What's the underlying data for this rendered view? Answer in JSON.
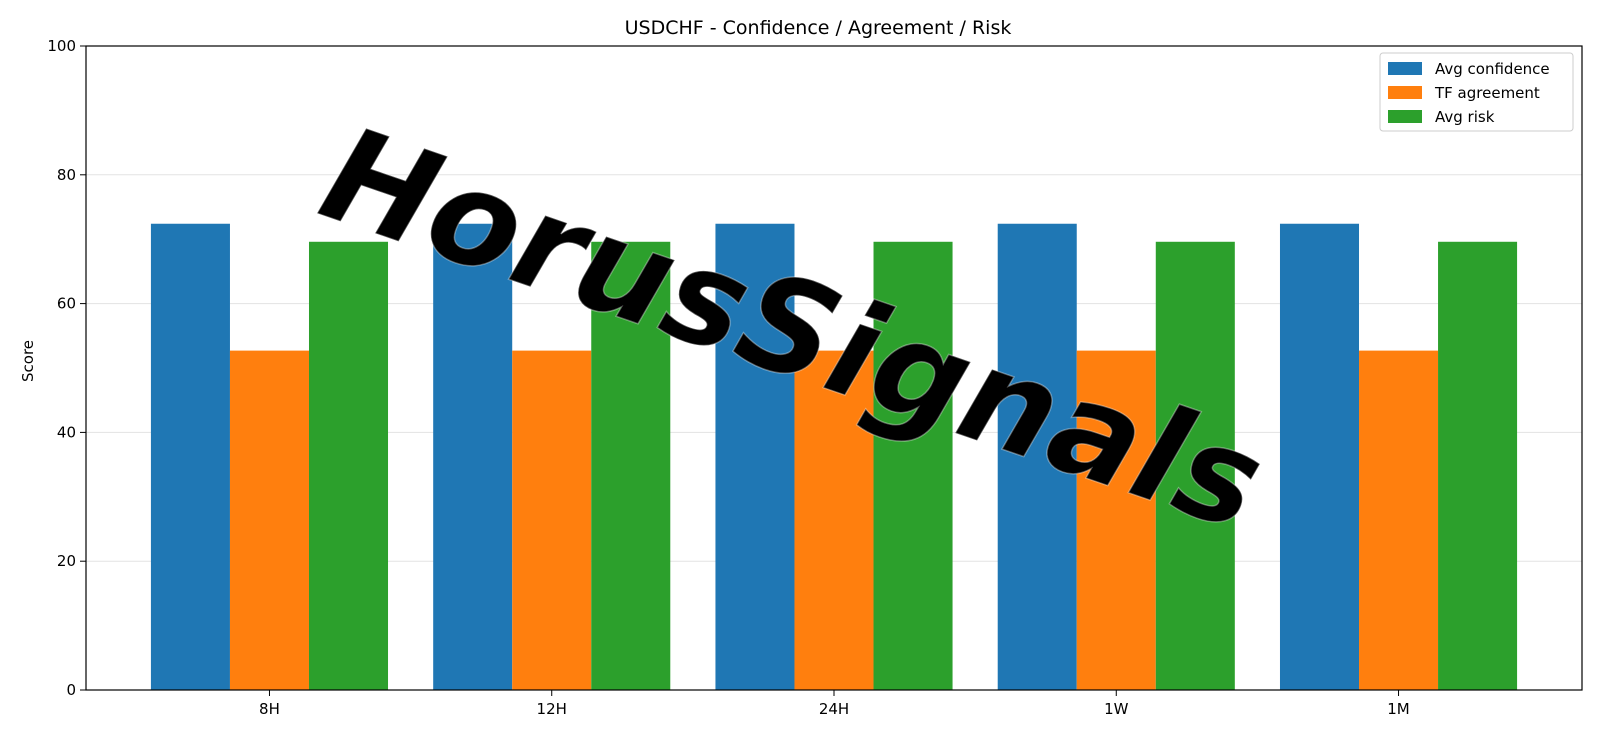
{
  "chart_data": {
    "type": "bar",
    "title": "USDCHF - Confidence / Agreement / Risk",
    "xlabel": "",
    "ylabel": "Score",
    "ylim": [
      0,
      100
    ],
    "yticks": [
      0,
      20,
      40,
      60,
      80,
      100
    ],
    "grid": "horizontal",
    "legend_position": "top-right",
    "categories": [
      "8H",
      "12H",
      "24H",
      "1W",
      "1M"
    ],
    "series": [
      {
        "name": "Avg confidence",
        "color": "#1f77b4",
        "values": [
          72.4,
          72.4,
          72.4,
          72.4,
          72.4
        ]
      },
      {
        "name": "TF agreement",
        "color": "#ff7f0e",
        "values": [
          52.7,
          52.7,
          52.7,
          52.7,
          52.7
        ]
      },
      {
        "name": "Avg risk",
        "color": "#2ca02c",
        "values": [
          69.6,
          69.6,
          69.6,
          69.6,
          69.6
        ]
      }
    ]
  },
  "watermark": {
    "text": "HorusSignals"
  }
}
